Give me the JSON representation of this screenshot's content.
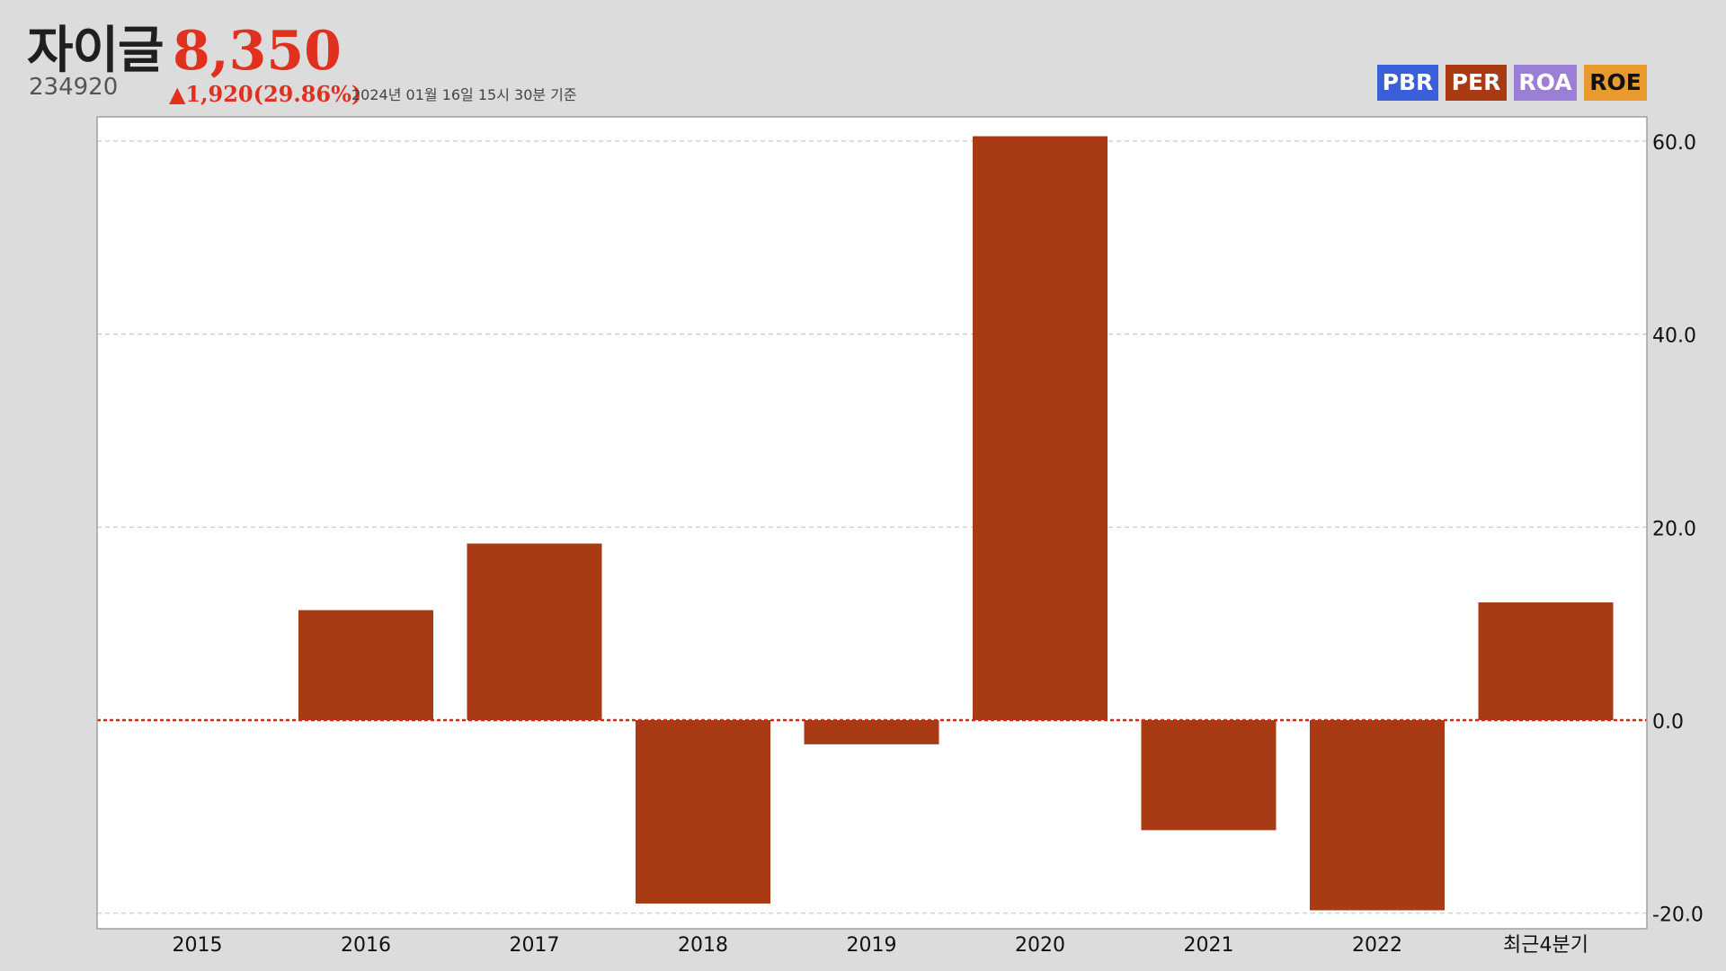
{
  "header": {
    "company_name": "자이글",
    "price": "8,350",
    "stock_code": "234920",
    "change": "▲1,920(29.86%)",
    "as_of": "2024년 01월 16일 15시 30분 기준"
  },
  "legend": [
    {
      "label": "PBR",
      "color": "#3a5fd9",
      "text_color": "#ffffff"
    },
    {
      "label": "PER",
      "color": "#a83a14",
      "text_color": "#ffffff"
    },
    {
      "label": "ROA",
      "color": "#9b7fd6",
      "text_color": "#ffffff"
    },
    {
      "label": "ROE",
      "color": "#e89a2e",
      "text_color": "#111111"
    }
  ],
  "chart_data": {
    "type": "bar",
    "categories": [
      "2015",
      "2016",
      "2017",
      "2018",
      "2019",
      "2020",
      "2021",
      "2022",
      "최근4분기"
    ],
    "series": [
      {
        "name": "PER",
        "values": [
          null,
          11.4,
          18.3,
          -19.0,
          -2.5,
          60.5,
          -11.4,
          -19.7,
          12.2
        ]
      }
    ],
    "yticks": [
      "60.0",
      "40.0",
      "20.0",
      "0.0",
      "-20.0"
    ],
    "ylim": [
      -21.8,
      63
    ],
    "y_axis_side": "right",
    "grid": true,
    "zero_line": true,
    "colors": {
      "bar": "#a83a14",
      "zero_line": "#cc2a1a",
      "grid": "#c8c8c8",
      "plot_bg": "#ffffff",
      "frame": "#a0a0a0"
    }
  }
}
